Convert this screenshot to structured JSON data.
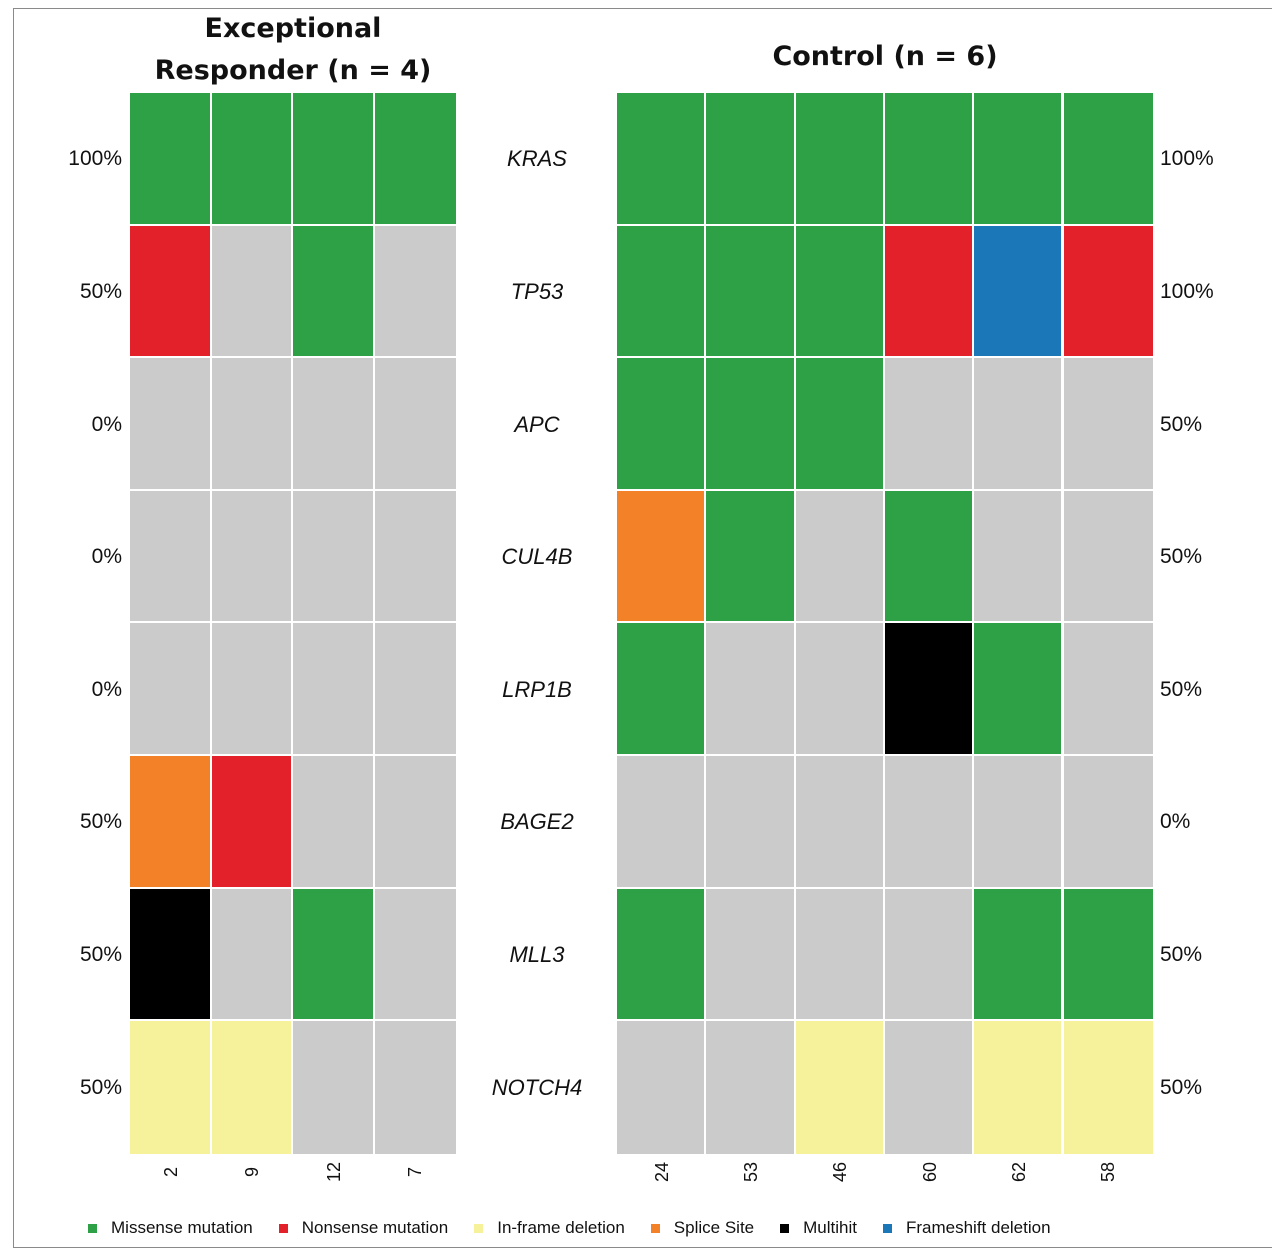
{
  "chart_data": {
    "type": "heatmap",
    "panels": [
      {
        "title": "Exceptional Responder (n = 4)",
        "title_lines": [
          "Exceptional",
          "Responder (n = 4)"
        ],
        "samples": [
          "2",
          "9",
          "12",
          "7"
        ],
        "percentages": [
          "100%",
          "50%",
          "0%",
          "0%",
          "0%",
          "50%",
          "50%",
          "50%"
        ],
        "cells": [
          [
            "missense",
            "missense",
            "missense",
            "missense"
          ],
          [
            "nonsense",
            "none",
            "missense",
            "none"
          ],
          [
            "none",
            "none",
            "none",
            "none"
          ],
          [
            "none",
            "none",
            "none",
            "none"
          ],
          [
            "none",
            "none",
            "none",
            "none"
          ],
          [
            "splice",
            "nonsense",
            "none",
            "none"
          ],
          [
            "multihit",
            "none",
            "missense",
            "none"
          ],
          [
            "inframe",
            "inframe",
            "none",
            "none"
          ]
        ]
      },
      {
        "title": "Control (n = 6)",
        "title_lines": [
          "Control (n = 6)"
        ],
        "samples": [
          "24",
          "53",
          "46",
          "60",
          "62",
          "58"
        ],
        "percentages": [
          "100%",
          "100%",
          "50%",
          "50%",
          "50%",
          "0%",
          "50%",
          "50%"
        ],
        "cells": [
          [
            "missense",
            "missense",
            "missense",
            "missense",
            "missense",
            "missense"
          ],
          [
            "missense",
            "missense",
            "missense",
            "nonsense",
            "frameshift",
            "nonsense"
          ],
          [
            "missense",
            "missense",
            "missense",
            "none",
            "none",
            "none"
          ],
          [
            "splice",
            "missense",
            "none",
            "missense",
            "none",
            "none"
          ],
          [
            "missense",
            "none",
            "none",
            "multihit",
            "missense",
            "none"
          ],
          [
            "none",
            "none",
            "none",
            "none",
            "none",
            "none"
          ],
          [
            "missense",
            "none",
            "none",
            "none",
            "missense",
            "missense"
          ],
          [
            "none",
            "none",
            "inframe",
            "none",
            "inframe",
            "inframe"
          ]
        ]
      }
    ],
    "genes": [
      "KRAS",
      "TP53",
      "APC",
      "CUL4B",
      "LRP1B",
      "BAGE2",
      "MLL3",
      "NOTCH4"
    ],
    "legend": [
      {
        "key": "missense",
        "label": "Missense mutation"
      },
      {
        "key": "nonsense",
        "label": "Nonsense mutation"
      },
      {
        "key": "inframe",
        "label": "In-frame deletion"
      },
      {
        "key": "splice",
        "label": "Splice Site"
      },
      {
        "key": "multihit",
        "label": "Multihit"
      },
      {
        "key": "frameshift",
        "label": "Frameshift deletion"
      }
    ],
    "colors": {
      "missense": "#2ea146",
      "nonsense": "#e2212b",
      "inframe": "#f6f29c",
      "splice": "#f28127",
      "multihit": "#000000",
      "frameshift": "#1c77b8",
      "none": "#cbcbcb"
    }
  }
}
